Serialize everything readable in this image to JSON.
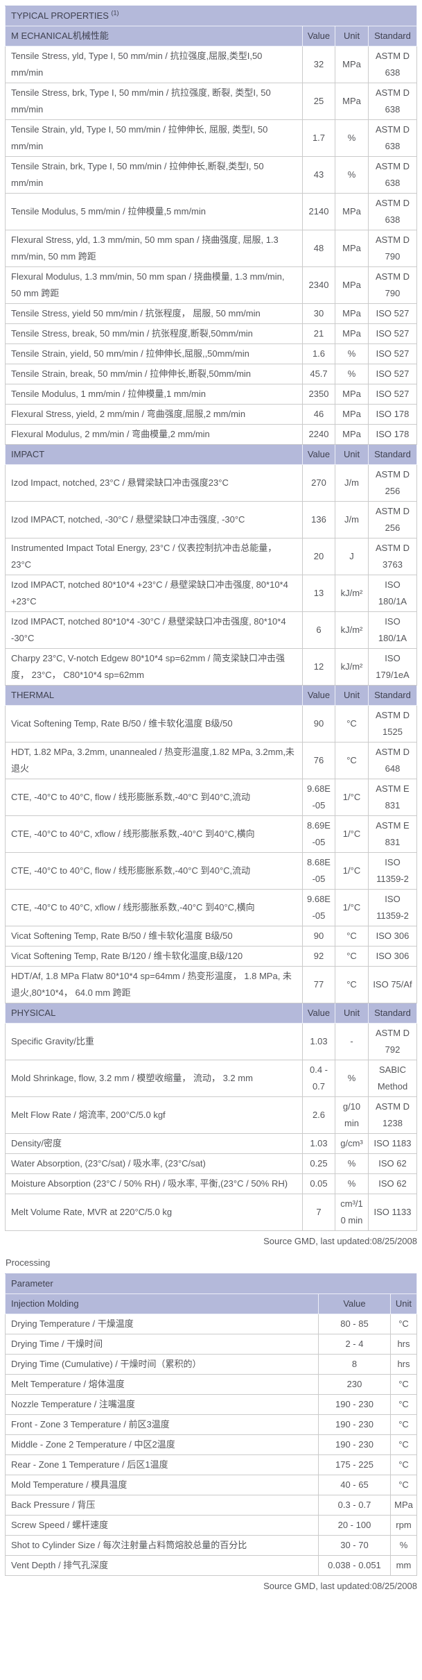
{
  "page": {
    "source_note_1": "Source GMD, last updated:08/25/2008",
    "source_note_2": "Source GMD, last updated:08/25/2008",
    "processing_heading": "Processing"
  },
  "colors": {
    "header_bg": "#b4b9da",
    "header_text": "#3f4150",
    "body_text": "#545559",
    "cell_border": "#cbcbcb",
    "outer_border": "#5a5b5f"
  },
  "properties_table": {
    "title": "TYPICAL PROPERTIES",
    "title_superscript": "(1)",
    "columns": [
      "Value",
      "Unit",
      "Standard"
    ],
    "sections": [
      {
        "name": "M ECHANICAL机械性能",
        "rows": [
          {
            "property": "Tensile Stress, yld, Type I, 50 mm/min / 抗拉强度,屈服,类型I,50 mm/min",
            "value": "32",
            "unit": "MPa",
            "standard": "ASTM D 638"
          },
          {
            "property": "Tensile Stress, brk, Type I, 50 mm/min / 抗拉强度, 断裂, 类型I, 50 mm/min",
            "value": "25",
            "unit": "MPa",
            "standard": "ASTM D 638"
          },
          {
            "property": "Tensile Strain, yld, Type I, 50 mm/min / 拉伸伸长, 屈服, 类型I, 50 mm/min",
            "value": "1.7",
            "unit": "%",
            "standard": "ASTM D 638"
          },
          {
            "property": "Tensile Strain, brk, Type I, 50 mm/min / 拉伸伸长,断裂,类型I, 50 mm/min",
            "value": "43",
            "unit": "%",
            "standard": "ASTM D 638"
          },
          {
            "property": "Tensile Modulus, 5 mm/min / 拉伸模量,5 mm/min",
            "value": "2140",
            "unit": "MPa",
            "standard": "ASTM D 638"
          },
          {
            "property": "Flexural Stress, yld, 1.3 mm/min, 50 mm span / 挠曲强度, 屈服, 1.3 mm/min, 50 mm 跨距",
            "value": "48",
            "unit": "MPa",
            "standard": "ASTM D 790"
          },
          {
            "property": "Flexural Modulus, 1.3 mm/min, 50 mm span / 挠曲模量, 1.3 mm/min, 50 mm 跨距",
            "value": "2340",
            "unit": "MPa",
            "standard": "ASTM D 790"
          },
          {
            "property": "Tensile Stress, yield 50 mm/min / 抗张程度， 屈服, 50 mm/min",
            "value": "30",
            "unit": "MPa",
            "standard": "ISO 527"
          },
          {
            "property": "Tensile Stress, break, 50 mm/min / 抗张程度,断裂,50mm/min",
            "value": "21",
            "unit": "MPa",
            "standard": "ISO 527"
          },
          {
            "property": "Tensile Strain, yield, 50 mm/min / 拉伸伸长,屈服,,50mm/min",
            "value": "1.6",
            "unit": "%",
            "standard": "ISO 527"
          },
          {
            "property": "Tensile Strain, break, 50 mm/min / 拉伸伸长,断裂,50mm/min",
            "value": "45.7",
            "unit": "%",
            "standard": "ISO 527"
          },
          {
            "property": "Tensile Modulus, 1 mm/min / 拉伸模量,1 mm/min",
            "value": "2350",
            "unit": "MPa",
            "standard": "ISO 527"
          },
          {
            "property": "Flexural Stress, yield, 2 mm/min / 弯曲强度,屈服,2 mm/min",
            "value": "46",
            "unit": "MPa",
            "standard": "ISO 178"
          },
          {
            "property": "Flexural Modulus, 2 mm/min / 弯曲模量,2 mm/min",
            "value": "2240",
            "unit": "MPa",
            "standard": "ISO 178"
          }
        ]
      },
      {
        "name": "IMPACT",
        "rows": [
          {
            "property": "Izod Impact, notched, 23°C / 悬臂梁缺口冲击强度23°C",
            "value": "270",
            "unit": "J/m",
            "standard": "ASTM D 256"
          },
          {
            "property": "Izod IMPACT, notched, -30°C / 悬壁梁缺口冲击强度, -30°C",
            "value": "136",
            "unit": "J/m",
            "standard": "ASTM D 256"
          },
          {
            "property": "Instrumented Impact Total Energy, 23°C / 仪表控制抗冲击总能量， 23°C",
            "value": "20",
            "unit": "J",
            "standard": "ASTM D 3763"
          },
          {
            "property": "Izod IMPACT, notched 80*10*4 +23°C / 悬壁梁缺口冲击强度, 80*10*4 +23°C",
            "value": "13",
            "unit": "kJ/m²",
            "standard": "ISO 180/1A"
          },
          {
            "property": "Izod IMPACT, notched 80*10*4 -30°C / 悬壁梁缺口冲击强度, 80*10*4 -30°C",
            "value": "6",
            "unit": "kJ/m²",
            "standard": "ISO 180/1A"
          },
          {
            "property": "Charpy 23°C, V-notch Edgew 80*10*4 sp=62mm / 简支梁缺口冲击强度， 23°C， C80*10*4 sp=62mm",
            "value": "12",
            "unit": "kJ/m²",
            "standard": "ISO 179/1eA"
          }
        ]
      },
      {
        "name": "THERMAL",
        "rows": [
          {
            "property": "Vicat Softening Temp, Rate B/50 / 维卡软化温度 B级/50",
            "value": "90",
            "unit": "°C",
            "standard": "ASTM D 1525"
          },
          {
            "property": "HDT, 1.82 MPa, 3.2mm, unannealed / 热变形温度,1.82 MPa, 3.2mm,未退火",
            "value": "76",
            "unit": "°C",
            "standard": "ASTM D 648"
          },
          {
            "property": "CTE, -40°C to 40°C, flow / 线形膨胀系数,-40°C 到40°C,流动",
            "value": "9.68E-05",
            "unit": "1/°C",
            "standard": "ASTM E 831"
          },
          {
            "property": "CTE, -40°C to 40°C, xflow / 线形膨胀系数,-40°C 到40°C,横向",
            "value": "8.69E-05",
            "unit": "1/°C",
            "standard": "ASTM E 831"
          },
          {
            "property": "CTE, -40°C to 40°C, flow / 线形膨胀系数,-40°C 到40°C,流动",
            "value": "8.68E-05",
            "unit": "1/°C",
            "standard": "ISO 11359-2"
          },
          {
            "property": "CTE, -40°C to 40°C, xflow / 线形膨胀系数,-40°C 到40°C,横向",
            "value": "9.68E-05",
            "unit": "1/°C",
            "standard": "ISO 11359-2"
          },
          {
            "property": "Vicat Softening Temp, Rate B/50 / 维卡软化温度 B级/50",
            "value": "90",
            "unit": "°C",
            "standard": "ISO 306"
          },
          {
            "property": "Vicat Softening Temp, Rate B/120 / 维卡软化温度,B级/120",
            "value": "92",
            "unit": "°C",
            "standard": "ISO 306"
          },
          {
            "property": "HDT/Af, 1.8 MPa Flatw 80*10*4 sp=64mm / 热变形温度， 1.8 MPa, 未退火,80*10*4， 64.0 mm 跨距",
            "value": "77",
            "unit": "°C",
            "standard": "ISO 75/Af"
          }
        ]
      },
      {
        "name": "PHYSICAL",
        "rows": [
          {
            "property": "Specific Gravity/比重",
            "value": "1.03",
            "unit": "-",
            "standard": "ASTM D 792"
          },
          {
            "property": "Mold Shrinkage, flow, 3.2 mm / 模塑收缩量， 流动， 3.2 mm",
            "value": "0.4 - 0.7",
            "unit": "%",
            "standard": "SABIC Method"
          },
          {
            "property": "Melt Flow Rate / 熔流率, 200°C/5.0 kgf",
            "value": "2.6",
            "unit": "g/10 min",
            "standard": "ASTM D 1238"
          },
          {
            "property": "Density/密度",
            "value": "1.03",
            "unit": "g/cm³",
            "standard": "ISO 1183"
          },
          {
            "property": "Water Absorption, (23°C/sat) / 吸水率, (23°C/sat)",
            "value": "0.25",
            "unit": "%",
            "standard": "ISO 62"
          },
          {
            "property": "Moisture Absorption (23°C / 50% RH) / 吸水率, 平衡,(23°C / 50% RH)",
            "value": "0.05",
            "unit": "%",
            "standard": "ISO 62"
          },
          {
            "property": "Melt Volume Rate, MVR at 220°C/5.0 kg",
            "value": "7",
            "unit": "cm³/10 min",
            "standard": "ISO 1133"
          }
        ]
      }
    ]
  },
  "processing_table": {
    "header": "Parameter",
    "subheader": "Injection Molding",
    "columns": [
      "Value",
      "Unit"
    ],
    "rows": [
      {
        "parameter": "Drying Temperature / 干燥温度",
        "value": "80 - 85",
        "unit": "°C"
      },
      {
        "parameter": "Drying Time / 干燥时间",
        "value": "2 - 4",
        "unit": "hrs"
      },
      {
        "parameter": "Drying Time (Cumulative) / 干燥时间（累积的）",
        "value": "8",
        "unit": "hrs"
      },
      {
        "parameter": "Melt Temperature / 熔体温度",
        "value": "230",
        "unit": "°C"
      },
      {
        "parameter": "Nozzle Temperature / 注嘴温度",
        "value": "190 - 230",
        "unit": "°C"
      },
      {
        "parameter": "Front - Zone 3 Temperature / 前区3温度",
        "value": "190 - 230",
        "unit": "°C"
      },
      {
        "parameter": "Middle - Zone 2 Temperature / 中区2温度",
        "value": "190 - 230",
        "unit": "°C"
      },
      {
        "parameter": "Rear - Zone 1 Temperature / 后区1温度",
        "value": "175 - 225",
        "unit": "°C"
      },
      {
        "parameter": "Mold Temperature / 模具温度",
        "value": "40 - 65",
        "unit": "°C"
      },
      {
        "parameter": "Back Pressure / 背压",
        "value": "0.3 - 0.7",
        "unit": "MPa"
      },
      {
        "parameter": "Screw Speed / 螺杆速度",
        "value": "20 - 100",
        "unit": "rpm"
      },
      {
        "parameter": "Shot to Cylinder Size / 每次注射量占料筒熔胶总量的百分比",
        "value": "30 - 70",
        "unit": "%"
      },
      {
        "parameter": "Vent Depth / 排气孔深度",
        "value": "0.038 - 0.051",
        "unit": "mm"
      }
    ]
  }
}
